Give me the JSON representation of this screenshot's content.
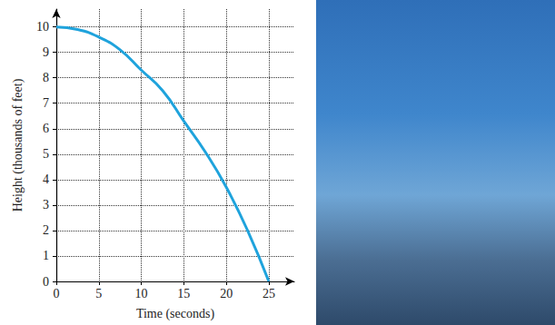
{
  "chart_data": {
    "type": "line",
    "xlabel": "Time (seconds)",
    "ylabel": "Height (thousands of feet)",
    "x": [
      0,
      2.5,
      5,
      7.5,
      10,
      12.5,
      15,
      17.5,
      20,
      22.5,
      25
    ],
    "values": [
      10,
      9.9,
      9.6,
      9.1,
      8.3,
      7.5,
      6.3,
      5.1,
      3.7,
      2.0,
      0
    ],
    "color": "#1fa3dc",
    "xlim": [
      0,
      28
    ],
    "ylim": [
      0,
      10.7
    ],
    "xticks": [
      0,
      5,
      10,
      15,
      20,
      25
    ],
    "yticks": [
      0,
      1,
      2,
      3,
      4,
      5,
      6,
      7,
      8,
      9,
      10
    ],
    "grid": true
  }
}
